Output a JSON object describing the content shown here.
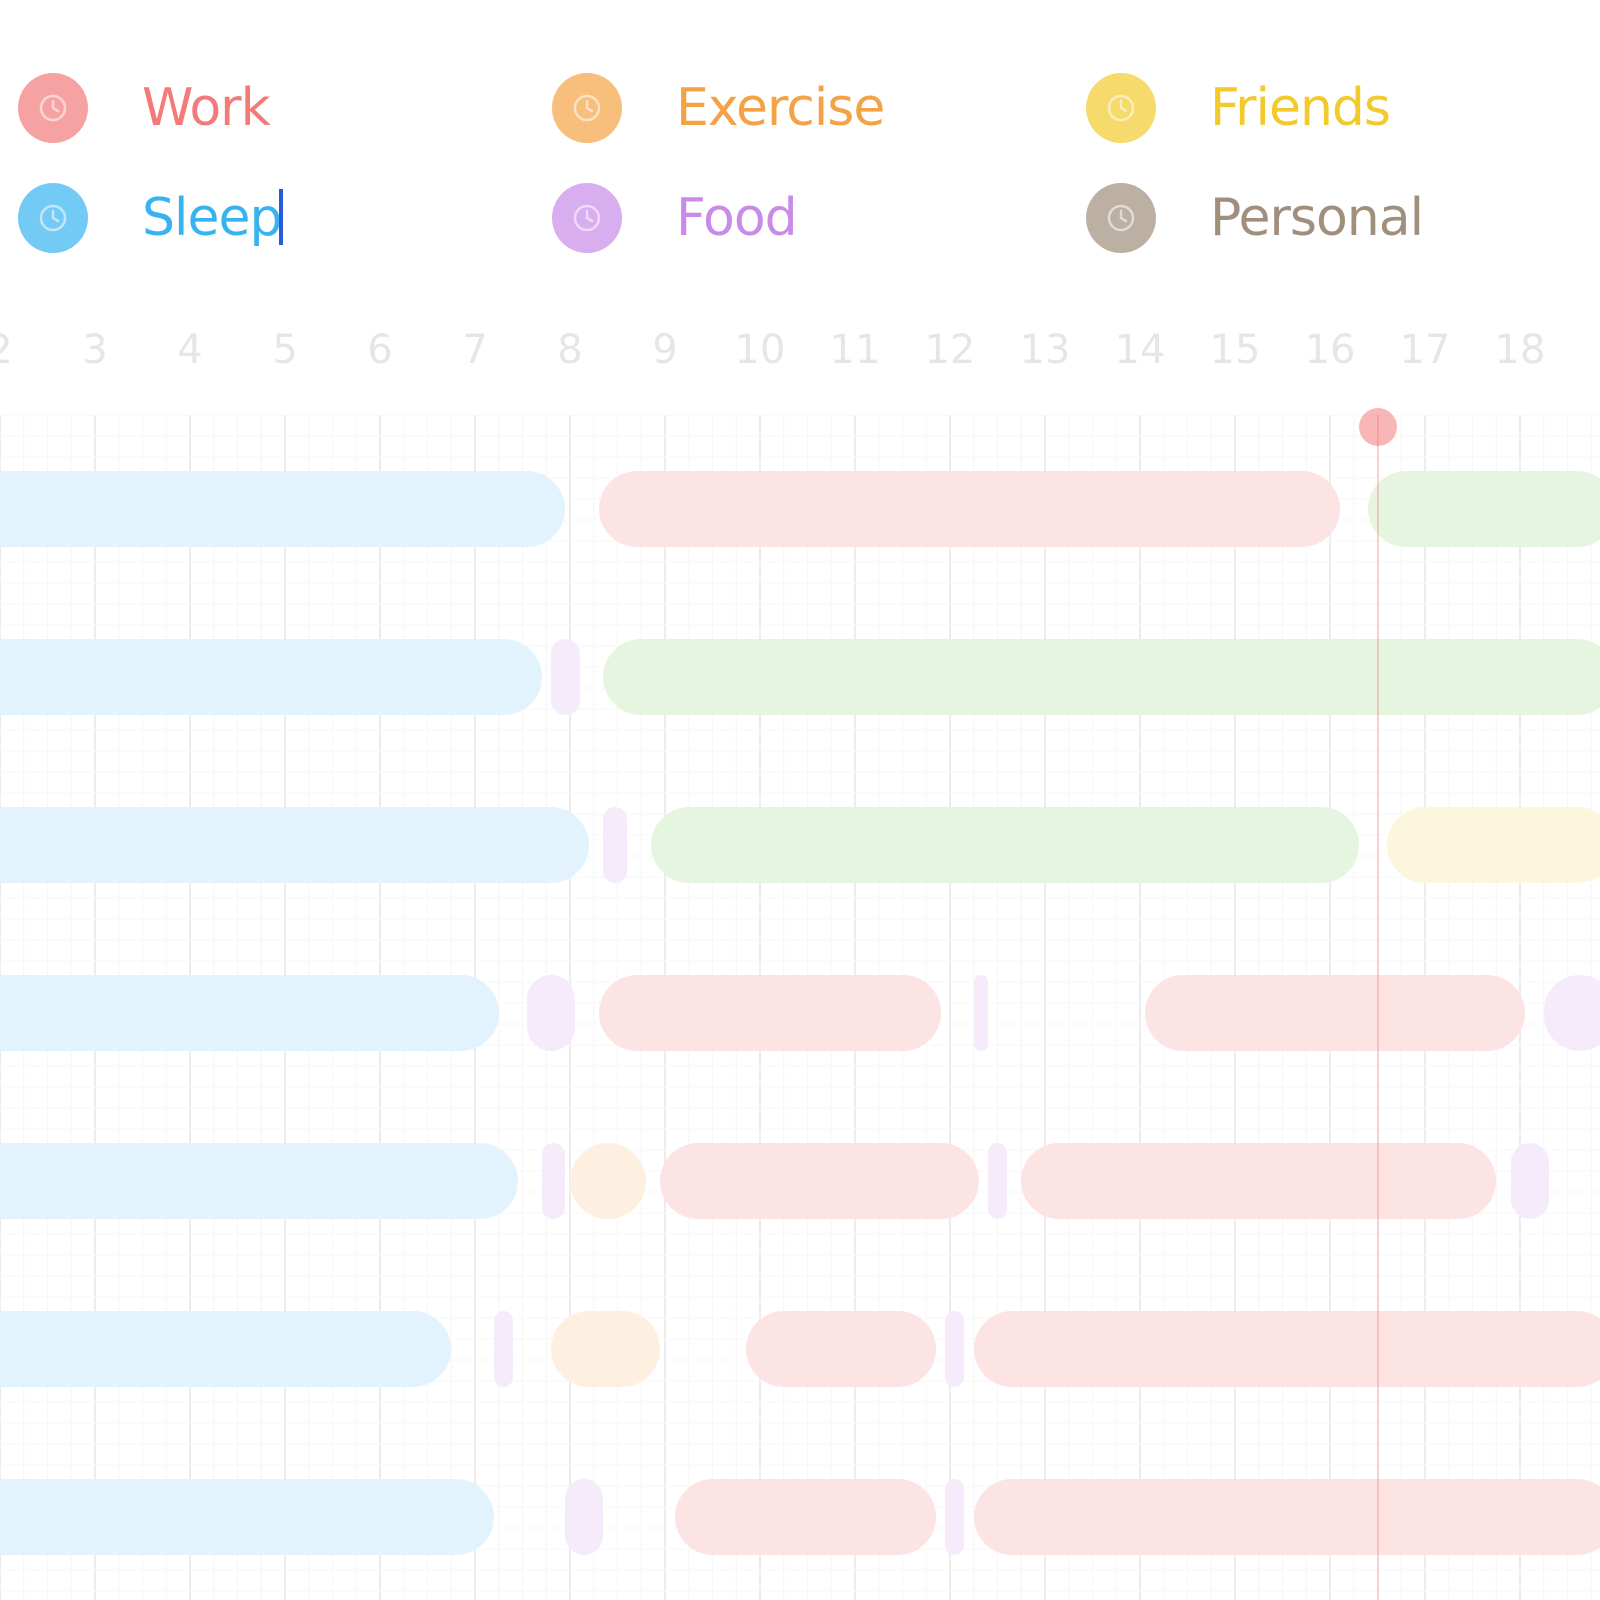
{
  "legend": {
    "work": {
      "label": "Work",
      "color": "#f47a7a",
      "icon": "clock-icon"
    },
    "exercise": {
      "label": "Exercise",
      "color": "#f3a345",
      "icon": "clock-icon"
    },
    "friends": {
      "label": "Friends",
      "color": "#f2ca2c",
      "icon": "clock-icon"
    },
    "sleep": {
      "label": "Sleep",
      "color": "#37b4f0",
      "icon": "clock-icon"
    },
    "food": {
      "label": "Food",
      "color": "#c98be8",
      "icon": "clock-icon"
    },
    "personal": {
      "label": "Personal",
      "color": "#a08f7c",
      "icon": "clock-icon"
    }
  },
  "hours": [
    "2",
    "3",
    "4",
    "5",
    "6",
    "7",
    "8",
    "9",
    "10",
    "11",
    "12",
    "13",
    "14",
    "15",
    "16",
    "17",
    "18"
  ],
  "colors": {
    "work_light": "#fce4e4",
    "sleep_light": "#e2f3fd",
    "green_light": "#e6f5df",
    "exercise_light": "#fdf0e0",
    "friends_light": "#fcf6dc",
    "food_light": "#f6ebfb",
    "now_marker": "#f47a7a",
    "grid": "#f2f2f2",
    "axis_text": "#e6e6e6"
  },
  "days": [
    {
      "segments": [
        {
          "category": "sleep",
          "start": 0,
          "end": 7.95
        },
        {
          "category": "work",
          "start": 8.3,
          "end": 16.1
        },
        {
          "category": "green",
          "start": 16.4,
          "end": 19
        }
      ]
    },
    {
      "segments": [
        {
          "category": "sleep",
          "start": 0,
          "end": 7.7
        },
        {
          "category": "food",
          "start": 7.8,
          "end": 8.1
        },
        {
          "category": "green",
          "start": 8.35,
          "end": 19
        }
      ]
    },
    {
      "segments": [
        {
          "category": "sleep",
          "start": 0,
          "end": 8.2
        },
        {
          "category": "food",
          "start": 8.35,
          "end": 8.6
        },
        {
          "category": "green",
          "start": 8.85,
          "end": 16.3
        },
        {
          "category": "friends",
          "start": 16.6,
          "end": 19
        }
      ]
    },
    {
      "segments": [
        {
          "category": "sleep",
          "start": 0,
          "end": 7.25
        },
        {
          "category": "food",
          "start": 7.55,
          "end": 8.05
        },
        {
          "category": "work",
          "start": 8.3,
          "end": 11.9
        },
        {
          "category": "food",
          "start": 12.25,
          "end": 12.4
        },
        {
          "category": "work",
          "start": 14.05,
          "end": 18.05
        },
        {
          "category": "food",
          "start": 18.25,
          "end": 19
        }
      ]
    },
    {
      "segments": [
        {
          "category": "sleep",
          "start": 0,
          "end": 7.45
        },
        {
          "category": "food",
          "start": 7.7,
          "end": 7.95
        },
        {
          "category": "exercise",
          "start": 8.0,
          "end": 8.8
        },
        {
          "category": "work",
          "start": 8.95,
          "end": 12.3
        },
        {
          "category": "food",
          "start": 12.4,
          "end": 12.6
        },
        {
          "category": "work",
          "start": 12.75,
          "end": 17.75
        },
        {
          "category": "food",
          "start": 17.9,
          "end": 18.3
        }
      ]
    },
    {
      "segments": [
        {
          "category": "sleep",
          "start": 0,
          "end": 6.75
        },
        {
          "category": "food",
          "start": 7.2,
          "end": 7.4
        },
        {
          "category": "exercise",
          "start": 7.8,
          "end": 8.95
        },
        {
          "category": "work",
          "start": 9.85,
          "end": 11.85
        },
        {
          "category": "food",
          "start": 11.95,
          "end": 12.15
        },
        {
          "category": "work",
          "start": 12.25,
          "end": 19
        }
      ]
    },
    {
      "segments": [
        {
          "category": "sleep",
          "start": 0,
          "end": 7.2
        },
        {
          "category": "food",
          "start": 7.95,
          "end": 8.35
        },
        {
          "category": "work",
          "start": 9.1,
          "end": 11.85
        },
        {
          "category": "food",
          "start": 11.95,
          "end": 12.15
        },
        {
          "category": "work",
          "start": 12.25,
          "end": 19
        }
      ]
    }
  ],
  "now_hour": 16.5
}
